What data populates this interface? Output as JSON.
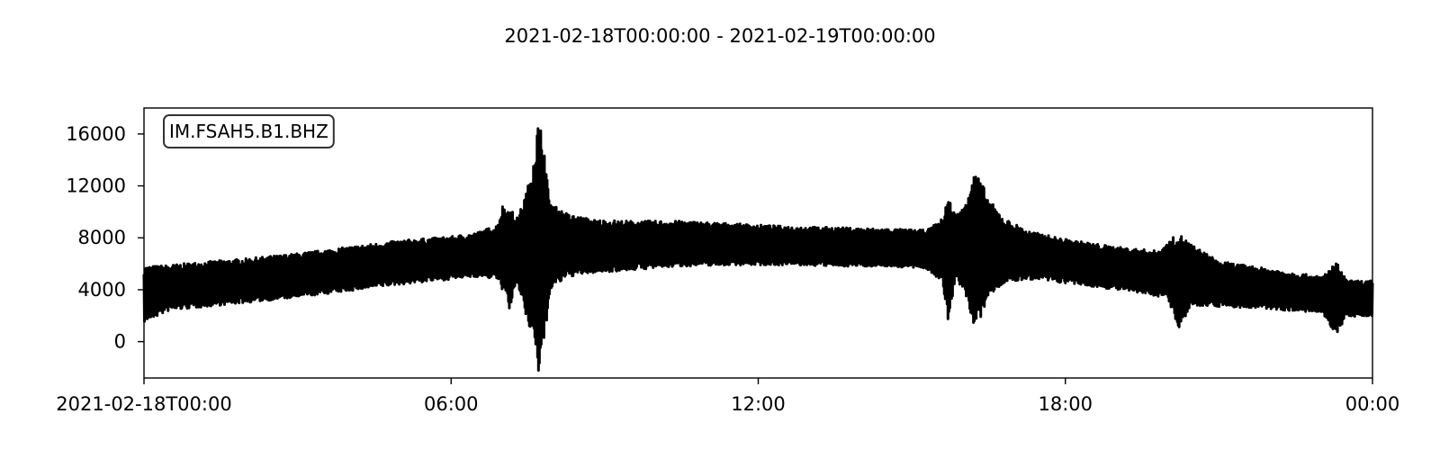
{
  "chart_data": {
    "type": "line",
    "title": "2021-02-18T00:00:00  -  2021-02-19T00:00:00",
    "station_label": "IM.FSAH5.B1.BHZ",
    "xlabel": "",
    "ylabel": "",
    "x_unit": "hours",
    "xlim": [
      0,
      24
    ],
    "ylim": [
      -2800,
      18000
    ],
    "grid": false,
    "line_color": "#000000",
    "x_ticks": [
      {
        "value": 0,
        "label": "2021-02-18T00:00"
      },
      {
        "value": 6,
        "label": "06:00"
      },
      {
        "value": 12,
        "label": "12:00"
      },
      {
        "value": 18,
        "label": "18:00"
      },
      {
        "value": 24,
        "label": "00:00"
      }
    ],
    "y_ticks": [
      {
        "value": 0,
        "label": "0"
      },
      {
        "value": 4000,
        "label": "4000"
      },
      {
        "value": 8000,
        "label": "8000"
      },
      {
        "value": 12000,
        "label": "12000"
      },
      {
        "value": 16000,
        "label": "16000"
      }
    ],
    "series": [
      {
        "envelope": [
          {
            "x": 0.0,
            "min": 1500,
            "max": 5800
          },
          {
            "x": 0.5,
            "min": 2400,
            "max": 5900
          },
          {
            "x": 1.0,
            "min": 2600,
            "max": 6100
          },
          {
            "x": 2.0,
            "min": 3000,
            "max": 6400
          },
          {
            "x": 3.0,
            "min": 3400,
            "max": 6800
          },
          {
            "x": 4.0,
            "min": 3900,
            "max": 7300
          },
          {
            "x": 5.0,
            "min": 4400,
            "max": 7800
          },
          {
            "x": 6.0,
            "min": 4800,
            "max": 8100
          },
          {
            "x": 6.5,
            "min": 5000,
            "max": 8400
          },
          {
            "x": 6.9,
            "min": 4800,
            "max": 9000
          },
          {
            "x": 7.0,
            "min": 4000,
            "max": 10500
          },
          {
            "x": 7.15,
            "min": 2400,
            "max": 10300
          },
          {
            "x": 7.3,
            "min": 4500,
            "max": 9500
          },
          {
            "x": 7.5,
            "min": 1200,
            "max": 12000
          },
          {
            "x": 7.6,
            "min": 300,
            "max": 14300
          },
          {
            "x": 7.7,
            "min": -2700,
            "max": 17000
          },
          {
            "x": 7.8,
            "min": -1200,
            "max": 16000
          },
          {
            "x": 7.9,
            "min": 3000,
            "max": 11500
          },
          {
            "x": 8.0,
            "min": 4200,
            "max": 10500
          },
          {
            "x": 8.3,
            "min": 5000,
            "max": 9800
          },
          {
            "x": 8.8,
            "min": 5300,
            "max": 9400
          },
          {
            "x": 9.5,
            "min": 5500,
            "max": 9300
          },
          {
            "x": 10.5,
            "min": 5800,
            "max": 9300
          },
          {
            "x": 11.5,
            "min": 5900,
            "max": 9100
          },
          {
            "x": 12.5,
            "min": 5900,
            "max": 8900
          },
          {
            "x": 13.5,
            "min": 5800,
            "max": 8800
          },
          {
            "x": 14.5,
            "min": 5800,
            "max": 8700
          },
          {
            "x": 15.3,
            "min": 5600,
            "max": 8600
          },
          {
            "x": 15.6,
            "min": 4500,
            "max": 9500
          },
          {
            "x": 15.7,
            "min": 1500,
            "max": 11300
          },
          {
            "x": 15.85,
            "min": 4600,
            "max": 9800
          },
          {
            "x": 16.0,
            "min": 4200,
            "max": 10300
          },
          {
            "x": 16.2,
            "min": 1200,
            "max": 13200
          },
          {
            "x": 16.35,
            "min": 1800,
            "max": 12400
          },
          {
            "x": 16.5,
            "min": 3500,
            "max": 11000
          },
          {
            "x": 16.8,
            "min": 4500,
            "max": 9500
          },
          {
            "x": 17.3,
            "min": 4800,
            "max": 8500
          },
          {
            "x": 18.0,
            "min": 4500,
            "max": 7900
          },
          {
            "x": 19.0,
            "min": 4000,
            "max": 7300
          },
          {
            "x": 19.8,
            "min": 3500,
            "max": 7000
          },
          {
            "x": 20.0,
            "min": 3300,
            "max": 7600
          },
          {
            "x": 20.2,
            "min": 1000,
            "max": 8400
          },
          {
            "x": 20.5,
            "min": 2800,
            "max": 7400
          },
          {
            "x": 21.0,
            "min": 2700,
            "max": 6200
          },
          {
            "x": 22.0,
            "min": 2500,
            "max": 5600
          },
          {
            "x": 23.0,
            "min": 2200,
            "max": 5000
          },
          {
            "x": 23.3,
            "min": 500,
            "max": 6100
          },
          {
            "x": 23.5,
            "min": 2000,
            "max": 4700
          },
          {
            "x": 24.0,
            "min": 1800,
            "max": 4700
          }
        ]
      }
    ]
  }
}
